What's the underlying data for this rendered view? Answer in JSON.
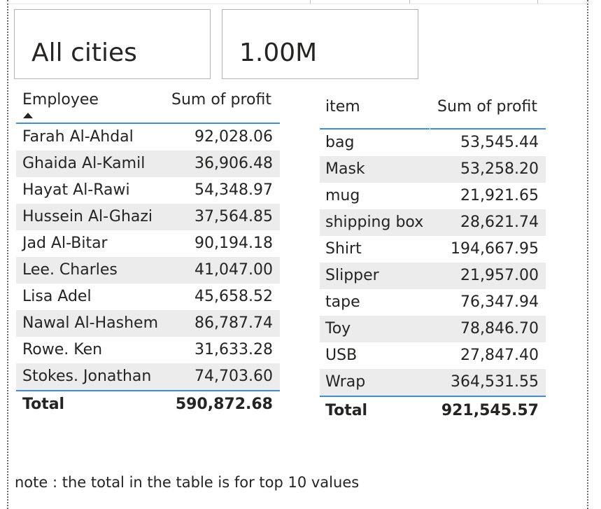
{
  "cards": {
    "city": "All cities",
    "value": "1.00M"
  },
  "employee_table": {
    "columns": [
      "Employee",
      "Sum of profit"
    ],
    "rows": [
      {
        "name": "Farah Al-Ahdal",
        "profit": "92,028.06"
      },
      {
        "name": "Ghaida Al-Kamil",
        "profit": "36,906.48"
      },
      {
        "name": "Hayat Al-Rawi",
        "profit": "54,348.97"
      },
      {
        "name": "Hussein Al-Ghazi",
        "profit": "37,564.85"
      },
      {
        "name": "Jad Al-Bitar",
        "profit": "90,194.18"
      },
      {
        "name": "Lee. Charles",
        "profit": "41,047.00"
      },
      {
        "name": "Lisa Adel",
        "profit": "45,658.52"
      },
      {
        "name": "Nawal Al-Hashem",
        "profit": "86,787.74"
      },
      {
        "name": "Rowe. Ken",
        "profit": "31,633.28"
      },
      {
        "name": "Stokes. Jonathan",
        "profit": "74,703.60"
      }
    ],
    "total_label": "Total",
    "total_value": "590,872.68"
  },
  "item_table": {
    "columns": [
      "item",
      "Sum of profit"
    ],
    "rows": [
      {
        "name": "bag",
        "profit": "53,545.44"
      },
      {
        "name": "Mask",
        "profit": "53,258.20"
      },
      {
        "name": "mug",
        "profit": "21,921.65"
      },
      {
        "name": "shipping box",
        "profit": "28,621.74"
      },
      {
        "name": "Shirt",
        "profit": "194,667.95"
      },
      {
        "name": "Slipper",
        "profit": "21,957.00"
      },
      {
        "name": "tape",
        "profit": "76,347.94"
      },
      {
        "name": "Toy",
        "profit": "78,846.70"
      },
      {
        "name": "USB",
        "profit": "27,847.40"
      },
      {
        "name": "Wrap",
        "profit": "364,531.55"
      }
    ],
    "total_label": "Total",
    "total_value": "921,545.57"
  },
  "note": "note : the total in the table is for top 10 values",
  "colors": {
    "accent_line": "#3f8fd2",
    "row_band": "#ececec",
    "text": "#252423",
    "card_border": "#b3b3b3"
  }
}
